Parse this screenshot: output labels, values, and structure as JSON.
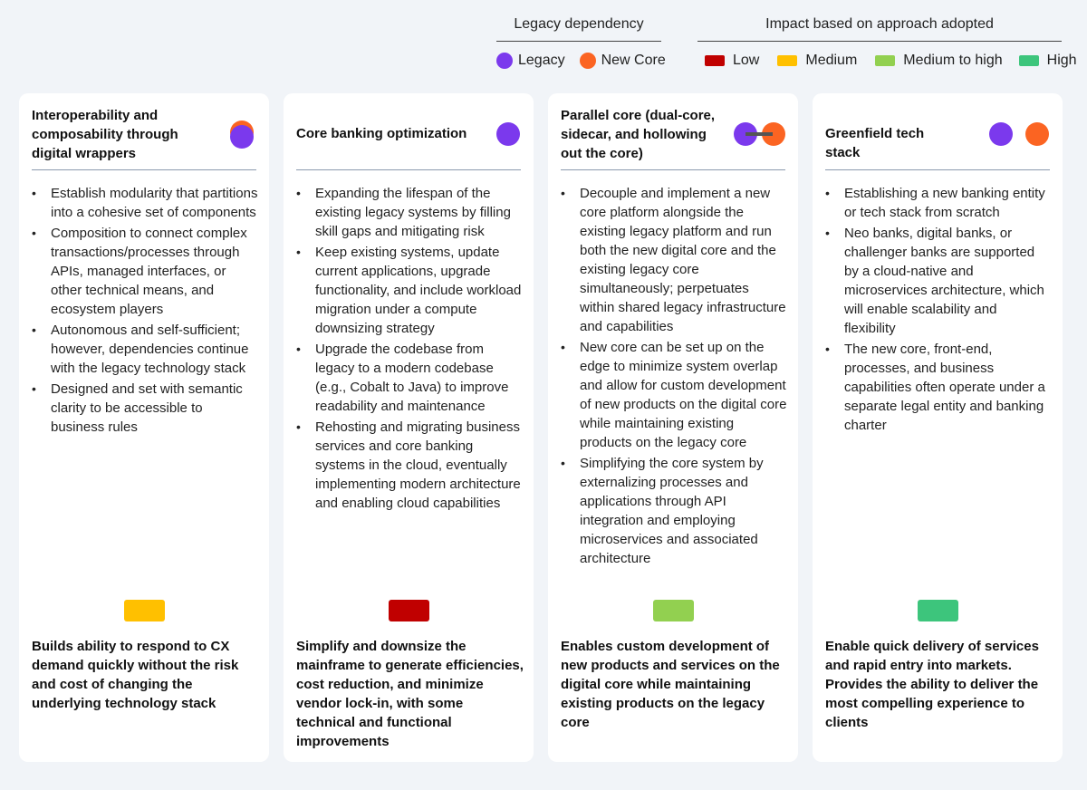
{
  "colors": {
    "legacy": "#7b39ed",
    "new_core": "#fb6422",
    "low": "#c00000",
    "medium": "#ffc000",
    "medium_to_high": "#92d050",
    "high": "#3dc57c"
  },
  "legend": {
    "dependency_title": "Legacy dependency",
    "legacy_label": "Legacy",
    "new_core_label": "New Core",
    "impact_title": "Impact based on approach adopted",
    "low_label": "Low",
    "medium_label": "Medium",
    "medium_high_label": "Medium to high",
    "high_label": "High"
  },
  "cards": [
    {
      "title": "Interoperability and composability through digital wrappers",
      "icon": "legacy-with-new-core-overlay",
      "impact": "medium",
      "bullets": [
        "Establish modularity that partitions into a cohesive set of components",
        "Composition to connect complex transactions/processes through APIs, managed interfaces, or other technical means, and ecosystem players",
        "Autonomous and self-sufficient; however, dependencies continue with the legacy technology stack",
        "Designed and set with semantic clarity to be accessible to business rules"
      ],
      "summary": "Builds ability to respond to CX demand quickly without the risk and cost of changing the underlying technology stack"
    },
    {
      "title": "Core banking optimization",
      "icon": "legacy-only",
      "impact": "low",
      "bullets": [
        "Expanding the lifespan of the existing legacy systems by filling skill gaps and mitigating risk",
        "Keep existing systems, update current applications, upgrade functionality, and include workload migration under a compute downsizing strategy",
        "Upgrade the codebase from legacy to a modern codebase (e.g., Cobalt to Java) to improve readability and maintenance",
        "Rehosting and migrating business services and core banking systems in the cloud, eventually implementing modern architecture and enabling cloud capabilities"
      ],
      "summary": "Simplify and downsize the mainframe to generate efficiencies, cost reduction, and minimize vendor lock-in, with some technical and functional improvements"
    },
    {
      "title": "Parallel core (dual-core, sidecar, and hollowing out the core)",
      "icon": "legacy-linked-new-core",
      "impact": "medium_to_high",
      "bullets": [
        "Decouple and implement a new core platform alongside the existing legacy platform and run both the new digital core and the existing legacy core simultaneously; perpetuates within shared legacy infrastructure and capabilities",
        "New core can be set up on the edge to minimize system overlap and allow for custom development of new products on the digital core while maintaining existing products on the legacy core",
        "Simplifying the core system by externalizing processes and applications through API integration and employing microservices and associated architecture"
      ],
      "summary": "Enables custom development of new products and services on the digital core while maintaining existing products on the legacy core"
    },
    {
      "title": "Greenfield tech stack",
      "icon": "legacy-and-new-core-separate",
      "impact": "high",
      "bullets": [
        "Establishing a new banking entity or tech stack from scratch",
        "Neo banks, digital banks, or challenger banks are supported by a cloud-native and microservices architecture, which will enable scalability and flexibility",
        "The new core, front-end, processes, and business capabilities often operate under a separate legal entity and banking charter"
      ],
      "summary": "Enable quick delivery of services and rapid entry into markets. Provides the ability to deliver the most compelling experience to clients"
    }
  ]
}
